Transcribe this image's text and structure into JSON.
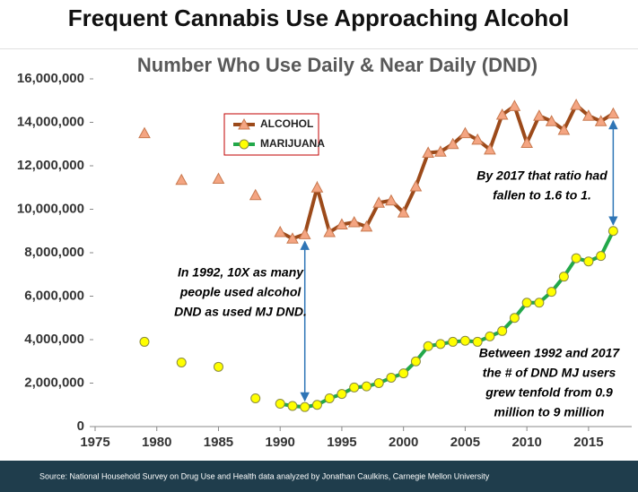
{
  "header": {
    "title": "Frequent Cannabis Use Approaching Alcohol"
  },
  "chart_data": {
    "type": "line",
    "title": "Number Who Use Daily & Near Daily (DND)",
    "x": [
      1979,
      1980,
      1982,
      1983,
      1985,
      1986,
      1988,
      1989,
      1990,
      1991,
      1992,
      1993,
      1994,
      1995,
      1996,
      1997,
      1998,
      1999,
      2000,
      2001,
      2002,
      2003,
      2004,
      2005,
      2006,
      2007,
      2008,
      2009,
      2010,
      2011,
      2012,
      2013,
      2014,
      2015,
      2016,
      2017
    ],
    "series": [
      {
        "name": "ALCOHOL",
        "color": "#9c4a1a",
        "marker": "triangle",
        "marker_color": "#f4a582",
        "values": [
          13500000,
          null,
          11350000,
          null,
          11400000,
          null,
          10650000,
          null,
          8950000,
          8650000,
          8850000,
          11000000,
          8950000,
          9300000,
          9400000,
          9200000,
          10300000,
          10400000,
          9850000,
          11050000,
          12600000,
          12650000,
          13000000,
          13500000,
          13200000,
          12750000,
          14350000,
          14750000,
          13050000,
          14300000,
          14050000,
          13650000,
          14800000,
          14300000,
          14050000,
          14400000
        ]
      },
      {
        "name": "MARIJUANA",
        "color": "#22a84a",
        "marker": "circle",
        "marker_color": "#ffff00",
        "values": [
          3900000,
          null,
          2950000,
          null,
          2750000,
          null,
          1300000,
          null,
          1050000,
          950000,
          900000,
          1000000,
          1300000,
          1500000,
          1800000,
          1850000,
          2000000,
          2250000,
          2450000,
          3000000,
          3700000,
          3800000,
          3900000,
          3950000,
          3900000,
          4150000,
          4400000,
          5000000,
          5700000,
          5700000,
          6200000,
          6900000,
          7750000,
          7600000,
          7850000,
          9000000
        ]
      }
    ],
    "xlim": [
      1975,
      2018.5
    ],
    "xticks": [
      1975,
      1980,
      1985,
      1990,
      1995,
      2000,
      2005,
      2010,
      2015
    ],
    "ylim": [
      0,
      16000000
    ],
    "yticks": [
      {
        "value": 0,
        "label": "0"
      },
      {
        "value": 2000000,
        "label": "2,000,000"
      },
      {
        "value": 4000000,
        "label": "4,000,000"
      },
      {
        "value": 6000000,
        "label": "6,000,000"
      },
      {
        "value": 8000000,
        "label": "8,000,000"
      },
      {
        "value": 10000000,
        "label": "10,000,000"
      },
      {
        "value": 12000000,
        "label": "12,000,000"
      },
      {
        "value": 14000000,
        "label": "14,000,000"
      },
      {
        "value": 16000000,
        "label": "16,000,000"
      }
    ],
    "annotations": [
      {
        "lines": [
          "In 1992, 10X as many",
          "people used alcohol",
          "DND as used MJ DND."
        ]
      },
      {
        "lines": [
          "By 2017 that ratio had",
          "fallen to 1.6 to 1."
        ]
      },
      {
        "lines": [
          "Between 1992 and 2017",
          "the # of DND MJ users",
          "grew tenfold from 0.9",
          "million to 9 million"
        ]
      }
    ]
  },
  "footer": {
    "source": "Source: National Household Survey on Drug Use and Health data analyzed by Jonathan Caulkins, Carnegie Mellon University"
  }
}
